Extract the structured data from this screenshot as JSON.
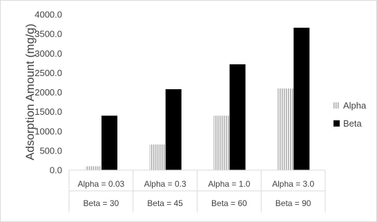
{
  "chart_data": {
    "type": "bar",
    "title": "",
    "xlabel": "",
    "ylabel": "Adsorption Amount (mg/g)",
    "ylim": [
      0,
      4000
    ],
    "yticks": [
      "0.0",
      "500.0",
      "1000.0",
      "1500.0",
      "2000.0",
      "2500.0",
      "3000.0",
      "3500.0",
      "4000.0"
    ],
    "categories": [
      {
        "line1": "Alpha = 0.03",
        "line2": "Beta = 30"
      },
      {
        "line1": "Alpha = 0.3",
        "line2": "Beta = 45"
      },
      {
        "line1": "Alpha = 1.0",
        "line2": "Beta = 60"
      },
      {
        "line1": "Alpha = 3.0",
        "line2": "Beta = 90"
      }
    ],
    "series": [
      {
        "name": "Alpha",
        "values": [
          100,
          660,
          1400,
          2100
        ],
        "pattern": "hatched-gray"
      },
      {
        "name": "Beta",
        "values": [
          1400,
          2080,
          2720,
          3660
        ],
        "color": "#000000"
      }
    ],
    "grid": false,
    "legend": "right"
  }
}
